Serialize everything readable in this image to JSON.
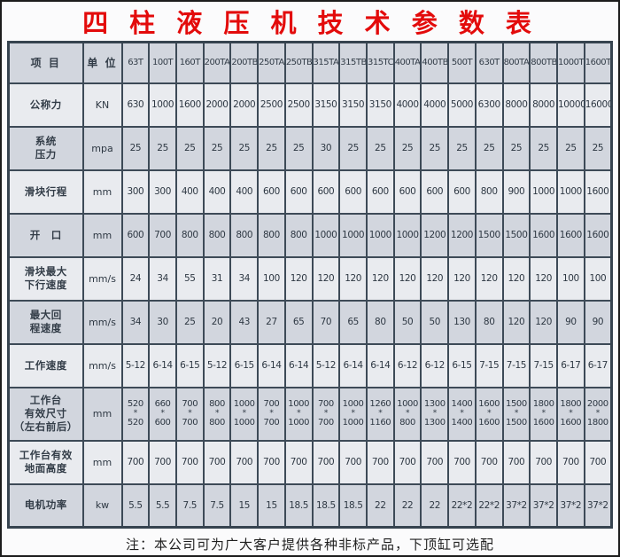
{
  "title": "四 柱 液 压 机 技 术 参 数 表",
  "footer_note": "注：本公司可为广大客户提供各种非标产品，下顶缸可选配",
  "colors": {
    "title_red": "#e30b0b",
    "border": "#3d4a57",
    "row_light": "#e9ebef",
    "row_dark": "#d2d6de",
    "text": "#333d48"
  },
  "table": {
    "header": {
      "item": "项 目",
      "unit": "单 位",
      "models": [
        "63T",
        "100T",
        "160T",
        "200TA",
        "200TB",
        "250TA",
        "250TB",
        "315TA",
        "315TB",
        "315TC",
        "400TA",
        "400TB",
        "500T",
        "630T",
        "800TA",
        "800TB",
        "1000T",
        "1600T"
      ]
    },
    "rows": [
      {
        "label_lines": [
          "公称力"
        ],
        "unit": "KN",
        "stacked": false,
        "values": [
          "630",
          "1000",
          "1600",
          "2000",
          "2000",
          "2500",
          "2500",
          "3150",
          "3150",
          "3150",
          "4000",
          "4000",
          "5000",
          "6300",
          "8000",
          "8000",
          "10000",
          "16000"
        ]
      },
      {
        "label_lines": [
          "系统",
          "压力"
        ],
        "unit": "mpa",
        "stacked": false,
        "values": [
          "25",
          "25",
          "25",
          "25",
          "25",
          "25",
          "25",
          "30",
          "25",
          "25",
          "25",
          "25",
          "25",
          "25",
          "25",
          "25",
          "25",
          "25"
        ]
      },
      {
        "label_lines": [
          "滑块行程"
        ],
        "unit": "mm",
        "stacked": false,
        "values": [
          "300",
          "300",
          "400",
          "400",
          "400",
          "600",
          "600",
          "600",
          "600",
          "600",
          "600",
          "600",
          "600",
          "800",
          "900",
          "1000",
          "1000",
          "1600"
        ]
      },
      {
        "label_lines": [
          "开　口"
        ],
        "unit": "mm",
        "stacked": false,
        "values": [
          "600",
          "700",
          "800",
          "800",
          "800",
          "800",
          "800",
          "1000",
          "1000",
          "1000",
          "1000",
          "1200",
          "1200",
          "1500",
          "1500",
          "1600",
          "1600",
          "1600"
        ]
      },
      {
        "label_lines": [
          "滑块最大",
          "下行速度"
        ],
        "unit": "mm/s",
        "stacked": false,
        "values": [
          "24",
          "34",
          "55",
          "31",
          "34",
          "100",
          "120",
          "120",
          "120",
          "120",
          "120",
          "120",
          "120",
          "120",
          "120",
          "120",
          "100",
          "100"
        ]
      },
      {
        "label_lines": [
          "最大回",
          "程速度"
        ],
        "unit": "mm/s",
        "stacked": false,
        "values": [
          "34",
          "30",
          "25",
          "20",
          "43",
          "27",
          "65",
          "70",
          "65",
          "80",
          "50",
          "50",
          "130",
          "80",
          "120",
          "120",
          "90",
          "90"
        ]
      },
      {
        "label_lines": [
          "工作速度"
        ],
        "unit": "mm/s",
        "stacked": false,
        "values": [
          "5-12",
          "6-14",
          "6-15",
          "5-12",
          "6-15",
          "6-14",
          "6-14",
          "5-12",
          "6-14",
          "6-14",
          "6-12",
          "6-12",
          "6-15",
          "7-15",
          "7-15",
          "7-15",
          "6-17",
          "6-17"
        ]
      },
      {
        "label_lines": [
          "工作台",
          "有效尺寸",
          "（左右前后）"
        ],
        "unit": "mm",
        "stacked": true,
        "values": [
          [
            "520",
            "520"
          ],
          [
            "660",
            "600"
          ],
          [
            "700",
            "700"
          ],
          [
            "800",
            "800"
          ],
          [
            "1000",
            "1000"
          ],
          [
            "700",
            "700"
          ],
          [
            "1000",
            "1000"
          ],
          [
            "700",
            "700"
          ],
          [
            "1000",
            "1000"
          ],
          [
            "1260",
            "1160"
          ],
          [
            "1000",
            "800"
          ],
          [
            "1300",
            "1300"
          ],
          [
            "1400",
            "1400"
          ],
          [
            "1600",
            "1600"
          ],
          [
            "1500",
            "1500"
          ],
          [
            "1800",
            "1600"
          ],
          [
            "1800",
            "1600"
          ],
          [
            "2000",
            "1800"
          ]
        ]
      },
      {
        "label_lines": [
          "工作台有效",
          "地面高度"
        ],
        "unit": "mm",
        "stacked": false,
        "values": [
          "700",
          "700",
          "700",
          "700",
          "700",
          "700",
          "700",
          "700",
          "700",
          "700",
          "700",
          "700",
          "700",
          "700",
          "700",
          "700",
          "700",
          "700"
        ]
      },
      {
        "label_lines": [
          "电机功率"
        ],
        "unit": "kw",
        "stacked": false,
        "values": [
          "5.5",
          "5.5",
          "7.5",
          "7.5",
          "15",
          "15",
          "18.5",
          "18.5",
          "18.5",
          "22",
          "22",
          "22",
          "22*2",
          "22*2",
          "37*2",
          "37*2",
          "37*2",
          "37*2"
        ]
      }
    ]
  }
}
